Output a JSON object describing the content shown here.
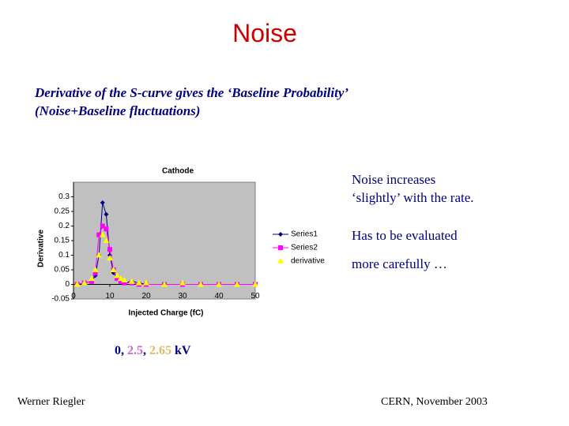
{
  "title": "Noise",
  "subtitle": [
    "Derivative of the S-curve gives the  ‘Baseline Probability’",
    "(Noise+Baseline fluctuations)"
  ],
  "notes": [
    "Noise increases",
    "‘slightly’ with the rate.",
    "Has to be evaluated",
    "more carefully …"
  ],
  "caption": [
    "0",
    ", ",
    "2.5",
    ", ",
    "2.65",
    " kV"
  ],
  "footer": {
    "left": "Werner Riegler",
    "right": "CERN, November 2003"
  },
  "chart_data": {
    "type": "scatter",
    "title": "Cathode",
    "x_label": "Injected Charge (fC)",
    "y_label": "Derivative",
    "x": [
      1,
      3,
      5,
      6,
      7,
      8,
      9,
      10,
      11,
      12,
      13,
      14,
      16,
      18,
      20,
      25,
      30,
      35,
      40,
      45,
      50
    ],
    "series": [
      {
        "name": "Series1",
        "color": "#000080",
        "marker": "diamond",
        "line": true,
        "values": [
          0,
          0.005,
          0.01,
          0.03,
          0.1,
          0.28,
          0.24,
          0.1,
          0.04,
          0.02,
          0.01,
          0.005,
          0.01,
          0.005,
          0,
          0,
          0,
          0,
          0,
          0,
          0
        ]
      },
      {
        "name": "Series2",
        "color": "#ff00ff",
        "marker": "square",
        "line": true,
        "values": [
          0,
          0.005,
          0.01,
          0.04,
          0.17,
          0.2,
          0.19,
          0.12,
          0.05,
          0.02,
          0.01,
          0.005,
          0.005,
          0,
          0,
          0,
          0,
          0,
          0,
          0,
          0
        ]
      },
      {
        "name": "derivative",
        "color": "#ffff00",
        "marker": "triangle",
        "line": false,
        "values": [
          0,
          0.005,
          0.02,
          0.05,
          0.1,
          0.17,
          0.15,
          0.09,
          0.05,
          0.03,
          0.02,
          0.015,
          0.01,
          0.005,
          0.005,
          0,
          0.005,
          0,
          0,
          0,
          0
        ]
      }
    ],
    "xlim": [
      0,
      50
    ],
    "xticks": [
      0,
      10,
      20,
      30,
      40,
      50
    ],
    "ylim": [
      -0.05,
      0.35
    ],
    "yticks": [
      -0.05,
      0,
      0.05,
      0.1,
      0.15,
      0.2,
      0.25,
      0.3
    ],
    "plot_background": "#c0c0c0",
    "legend": "right"
  }
}
